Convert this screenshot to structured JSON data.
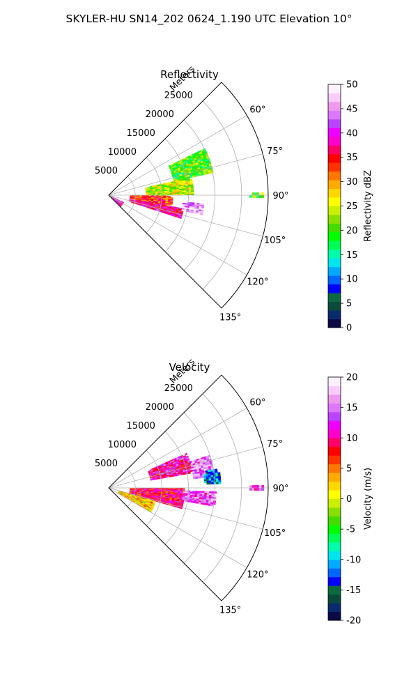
{
  "suptitle": "SKYLER-HU  SN14_202  0624_1.190 UTC Elevation 10°",
  "colors": {
    "reflectivity_cmap": [
      "#0b0a46",
      "#0a2a6e",
      "#0b4a3a",
      "#0c6a40",
      "#0000ff",
      "#0066ff",
      "#00aaff",
      "#00e5ee",
      "#00ffaa",
      "#00ff55",
      "#00ff00",
      "#44dd00",
      "#88e000",
      "#c8f000",
      "#ffff00",
      "#ffd700",
      "#ffaa00",
      "#ff7700",
      "#ff3300",
      "#ff0000",
      "#ff0066",
      "#ff00cc",
      "#ee00ff",
      "#bb44ff",
      "#dd77ff",
      "#ee99ee",
      "#f8ccf8",
      "#fff0ff"
    ],
    "velocity_cmap": [
      "#0b0a46",
      "#0a2a6e",
      "#0b4a3a",
      "#0c6a40",
      "#0000ff",
      "#0066ff",
      "#00aaff",
      "#00e5ee",
      "#00ffaa",
      "#00ff55",
      "#00ff00",
      "#44dd00",
      "#88e000",
      "#c8f000",
      "#ffff00",
      "#ffd700",
      "#ffaa00",
      "#ff7700",
      "#ff3300",
      "#ff0000",
      "#ff0066",
      "#ff00cc",
      "#ee00ff",
      "#bb44ff",
      "#dd77ff",
      "#ee99ee",
      "#f8ccf8",
      "#fff0ff"
    ]
  },
  "chart_data": [
    {
      "type": "heatmap",
      "projection": "polar-sector",
      "title": "Reflectivity",
      "radial_label": "Meters",
      "r_range": [
        0,
        30000
      ],
      "r_ticks": [
        5000,
        10000,
        15000,
        20000,
        25000
      ],
      "theta_range": [
        45,
        135
      ],
      "theta_ticks": [
        60,
        75,
        90,
        105,
        120,
        135
      ],
      "theta_tick_labels": [
        "60°",
        "75°",
        "90°",
        "105°",
        "120°",
        "135°"
      ],
      "grid": true,
      "colorbar": {
        "label": "Reflectivity dBZ",
        "min": 0,
        "max": 50,
        "ticks": [
          0,
          5,
          10,
          15,
          20,
          25,
          30,
          35,
          40,
          45,
          50
        ]
      },
      "echo_regions": [
        {
          "theta": [
            64,
            78
          ],
          "r": [
            12500,
            20000
          ],
          "value": 20
        },
        {
          "theta": [
            78,
            90
          ],
          "r": [
            7000,
            16000
          ],
          "value": 24
        },
        {
          "theta": [
            90,
            100
          ],
          "r": [
            4000,
            12000
          ],
          "value": 33
        },
        {
          "theta": [
            100,
            108
          ],
          "r": [
            4000,
            14000
          ],
          "value": 38
        },
        {
          "theta": [
            95,
            102
          ],
          "r": [
            14000,
            18000
          ],
          "value": 46
        },
        {
          "theta": [
            89,
            91
          ],
          "r": [
            26500,
            29000
          ],
          "value": 20
        },
        {
          "theta": [
            115,
            135
          ],
          "r": [
            0,
            3000
          ],
          "value": 40
        }
      ]
    },
    {
      "type": "heatmap",
      "projection": "polar-sector",
      "title": "Velocity",
      "radial_label": "Meters",
      "r_range": [
        0,
        30000
      ],
      "r_ticks": [
        5000,
        10000,
        15000,
        20000,
        25000
      ],
      "theta_range": [
        45,
        135
      ],
      "theta_ticks": [
        60,
        75,
        90,
        105,
        120,
        135
      ],
      "theta_tick_labels": [
        "60°",
        "75°",
        "90°",
        "105°",
        "120°",
        "135°"
      ],
      "grid": true,
      "colorbar": {
        "label": "Velocity (m/s)",
        "min": -20,
        "max": 20,
        "ticks": [
          -20,
          -15,
          -10,
          -5,
          0,
          5,
          10,
          15,
          20
        ]
      },
      "echo_regions": [
        {
          "theta": [
            66,
            80
          ],
          "r": [
            8000,
            16000
          ],
          "value": 11
        },
        {
          "theta": [
            72,
            84
          ],
          "r": [
            16000,
            20000
          ],
          "value": 15
        },
        {
          "theta": [
            80,
            88
          ],
          "r": [
            18000,
            21000
          ],
          "value": -12
        },
        {
          "theta": [
            90,
            106
          ],
          "r": [
            4000,
            14000
          ],
          "value": 9
        },
        {
          "theta": [
            92,
            100
          ],
          "r": [
            14000,
            20000
          ],
          "value": 14
        },
        {
          "theta": [
            89,
            91
          ],
          "r": [
            26500,
            29000
          ],
          "value": 14
        },
        {
          "theta": [
            106,
            120
          ],
          "r": [
            2000,
            9000
          ],
          "value": 2
        }
      ]
    }
  ]
}
